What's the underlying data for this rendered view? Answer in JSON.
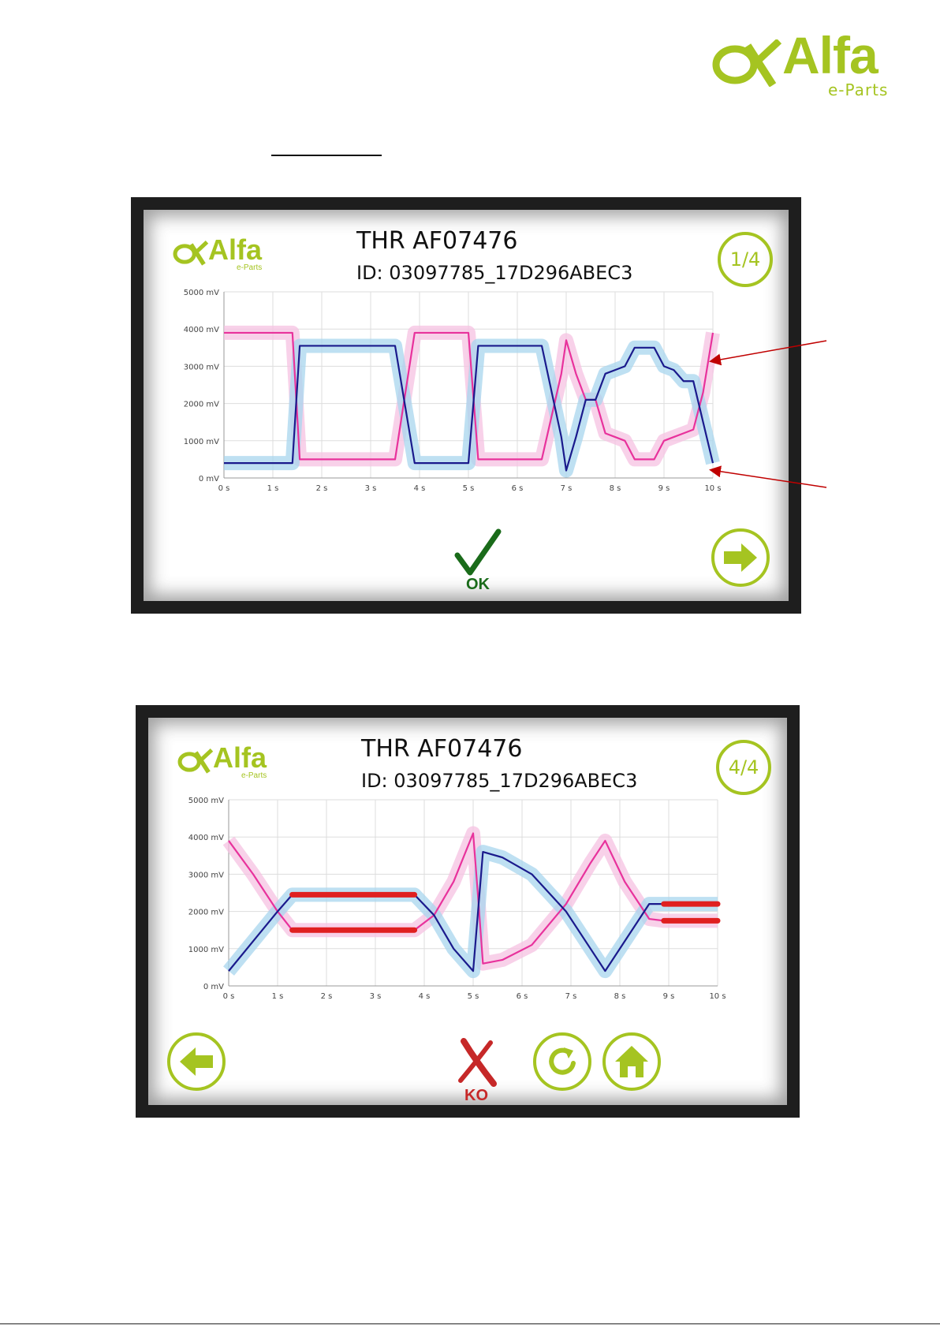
{
  "document": {
    "logo": {
      "word": "Alfa",
      "sub": "e-Parts"
    }
  },
  "screens": [
    {
      "logo": {
        "word": "Alfa",
        "sub": "e-Parts"
      },
      "title": "THR AF07476",
      "id_line": "ID: 03097785_17D296ABEC3",
      "page": "1/4",
      "status": "OK",
      "buttons": [
        "next-arrow"
      ]
    },
    {
      "logo": {
        "word": "Alfa",
        "sub": "e-Parts"
      },
      "title": "THR AF07476",
      "id_line": "ID: 03097785_17D296ABEC3",
      "page": "4/4",
      "status": "KO",
      "buttons": [
        "back-arrow",
        "retry",
        "home"
      ]
    }
  ],
  "colors": {
    "brand": "#a5c421",
    "series_pink": "#e8329c",
    "series_navy": "#1a1a8c",
    "band_pink": "#f5c2e2",
    "band_blue": "#a8d6ee",
    "fault_red": "#e02020",
    "ok_green": "#1a6b1a",
    "ko_red": "#c62828",
    "annotation_arrow": "#c00000"
  },
  "chart_data": [
    {
      "type": "line",
      "x_ticks": [
        "0 s",
        "1 s",
        "2 s",
        "3 s",
        "4 s",
        "5 s",
        "6 s",
        "7 s",
        "8 s",
        "9 s",
        "10 s"
      ],
      "y_ticks": [
        "0 mV",
        "1000 mV",
        "2000 mV",
        "3000 mV",
        "4000 mV",
        "5000 mV"
      ],
      "xlim": [
        0,
        10
      ],
      "ylim": [
        0,
        5000
      ],
      "grid": true,
      "series": [
        {
          "color": "pink",
          "x": [
            0,
            1.4,
            1.55,
            3.5,
            3.9,
            5.0,
            5.2,
            6.5,
            6.9,
            7.0,
            7.2,
            7.4,
            7.6,
            7.8,
            8.0,
            8.2,
            8.4,
            8.8,
            9.0,
            9.2,
            9.4,
            9.6,
            9.8,
            10.0
          ],
          "y": [
            3900,
            3900,
            500,
            500,
            3900,
            3900,
            500,
            500,
            2800,
            3700,
            2800,
            2100,
            2100,
            1200,
            1100,
            1000,
            500,
            500,
            1000,
            1100,
            1200,
            1300,
            2300,
            3900
          ]
        },
        {
          "color": "navy",
          "x": [
            0,
            1.4,
            1.55,
            3.5,
            3.9,
            5.0,
            5.2,
            6.5,
            6.9,
            7.0,
            7.2,
            7.4,
            7.6,
            7.8,
            8.0,
            8.2,
            8.4,
            8.8,
            9.0,
            9.2,
            9.4,
            9.6,
            9.8,
            10.0
          ],
          "y": [
            400,
            400,
            3550,
            3550,
            400,
            400,
            3550,
            3550,
            1100,
            200,
            1100,
            2100,
            2100,
            2800,
            2900,
            3000,
            3500,
            3500,
            3000,
            2900,
            2600,
            2600,
            1500,
            400
          ]
        }
      ]
    },
    {
      "type": "line",
      "x_ticks": [
        "0 s",
        "1 s",
        "2 s",
        "3 s",
        "4 s",
        "5 s",
        "6 s",
        "7 s",
        "8 s",
        "9 s",
        "10 s"
      ],
      "y_ticks": [
        "0 mV",
        "1000 mV",
        "2000 mV",
        "3000 mV",
        "4000 mV",
        "5000 mV"
      ],
      "xlim": [
        0,
        10
      ],
      "ylim": [
        0,
        5000
      ],
      "grid": true,
      "series": [
        {
          "color": "pink",
          "x": [
            0,
            0.5,
            1.0,
            1.3,
            1.6,
            3.8,
            4.2,
            4.6,
            5.0,
            5.1,
            5.2,
            5.6,
            6.2,
            6.9,
            7.4,
            7.7,
            8.1,
            8.6,
            8.9,
            10.0
          ],
          "y": [
            3900,
            3000,
            2000,
            1500,
            1500,
            1500,
            1900,
            2800,
            4100,
            2400,
            600,
            700,
            1100,
            2200,
            3300,
            3900,
            2800,
            1800,
            1750,
            1750
          ]
        },
        {
          "color": "navy",
          "x": [
            0,
            0.5,
            1.0,
            1.3,
            1.6,
            3.8,
            4.2,
            4.6,
            5.0,
            5.1,
            5.2,
            5.6,
            6.2,
            6.9,
            7.4,
            7.7,
            8.1,
            8.6,
            8.9,
            10.0
          ],
          "y": [
            400,
            1200,
            2000,
            2450,
            2450,
            2450,
            1900,
            1000,
            400,
            2000,
            3600,
            3450,
            3000,
            2000,
            1000,
            400,
            1200,
            2200,
            2200,
            2200
          ]
        }
      ],
      "fault_segments": [
        {
          "x": [
            1.3,
            3.8
          ],
          "y": 2450
        },
        {
          "x": [
            1.3,
            3.8
          ],
          "y": 1500
        },
        {
          "x": [
            8.9,
            10.0
          ],
          "y": 2200
        },
        {
          "x": [
            8.9,
            10.0
          ],
          "y": 1750
        }
      ]
    }
  ]
}
